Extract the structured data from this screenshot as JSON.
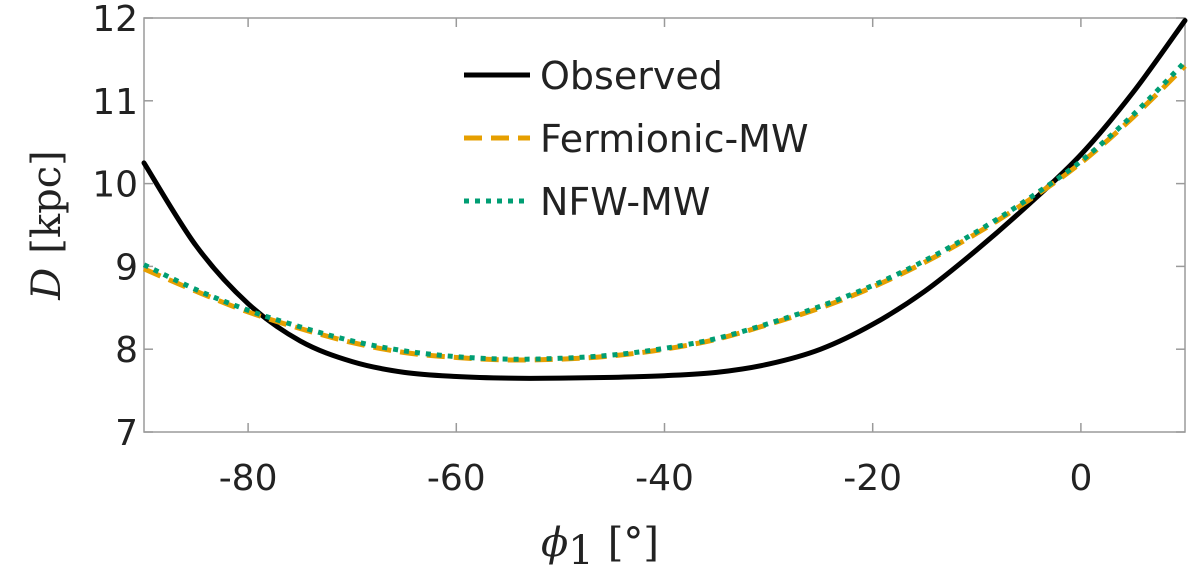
{
  "chart_data": {
    "type": "line",
    "title": "",
    "xlabel": {
      "symbol": "ϕ",
      "subscript": "1",
      "unit": "[°]"
    },
    "ylabel": {
      "symbol": "D",
      "unit": "[kpc]"
    },
    "xlim": [
      -90,
      10
    ],
    "ylim": [
      7,
      12
    ],
    "xticks": [
      -80,
      -60,
      -40,
      -20,
      0
    ],
    "yticks": [
      7,
      8,
      9,
      10,
      11,
      12
    ],
    "xtick_labels": [
      "-80",
      "-60",
      "-40",
      "-20",
      "0"
    ],
    "ytick_labels": [
      "7",
      "8",
      "9",
      "10",
      "11",
      "12"
    ],
    "grid": false,
    "legend_position": "top-center",
    "x": [
      -90,
      -85,
      -80,
      -75,
      -70,
      -65,
      -60,
      -55,
      -50,
      -45,
      -40,
      -35,
      -30,
      -25,
      -20,
      -15,
      -10,
      -5,
      0,
      5,
      10
    ],
    "series": [
      {
        "name": "Observed",
        "color": "#000000",
        "style": "solid",
        "values": [
          10.25,
          9.25,
          8.55,
          8.1,
          7.85,
          7.72,
          7.67,
          7.65,
          7.65,
          7.66,
          7.68,
          7.72,
          7.82,
          8.0,
          8.3,
          8.7,
          9.2,
          9.75,
          10.35,
          11.1,
          11.97
        ]
      },
      {
        "name": "Fermionic-MW",
        "color": "#E69F00",
        "style": "dashed",
        "values": [
          8.97,
          8.7,
          8.45,
          8.25,
          8.08,
          7.96,
          7.9,
          7.87,
          7.88,
          7.92,
          8.0,
          8.12,
          8.3,
          8.5,
          8.75,
          9.05,
          9.4,
          9.8,
          10.25,
          10.8,
          11.42
        ]
      },
      {
        "name": "NFW-MW",
        "color": "#009E73",
        "style": "dotted",
        "values": [
          9.02,
          8.72,
          8.47,
          8.27,
          8.1,
          7.98,
          7.91,
          7.88,
          7.89,
          7.93,
          8.01,
          8.13,
          8.31,
          8.52,
          8.77,
          9.07,
          9.42,
          9.82,
          10.27,
          10.83,
          11.47
        ]
      }
    ]
  }
}
